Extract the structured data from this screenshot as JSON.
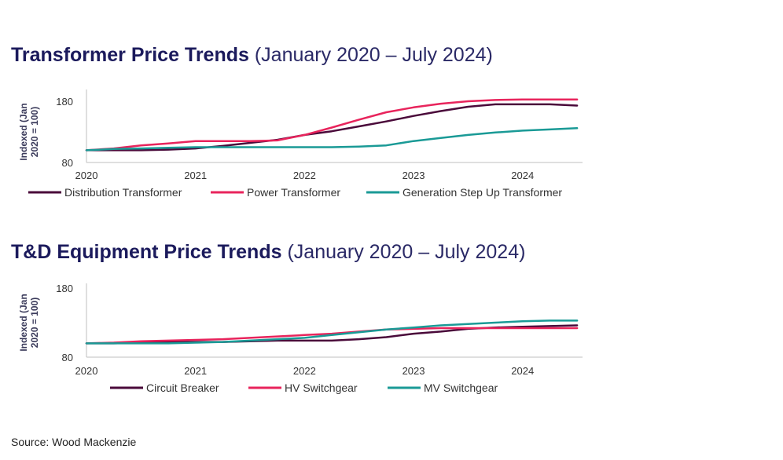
{
  "source_text": "Source: Wood Mackenzie",
  "chart_data": [
    {
      "type": "line",
      "title": "Transformer Price Trends",
      "subtitle": "(January 2020 – July 2024)",
      "ylabel_line1": "Indexed (Jan",
      "ylabel_line2": "2020 = 100)",
      "xlabel": "",
      "xlim": [
        2020,
        2024.55
      ],
      "ylim": [
        80,
        190
      ],
      "x_ticks": [
        "2020",
        "2021",
        "2022",
        "2023",
        "2024"
      ],
      "y_ticks": [
        "80",
        "180"
      ],
      "grid": false,
      "legend_position": "bottom",
      "x": [
        2020,
        2020.25,
        2020.5,
        2020.75,
        2021,
        2021.25,
        2021.5,
        2021.75,
        2022,
        2022.25,
        2022.5,
        2022.75,
        2023,
        2023.25,
        2023.5,
        2023.75,
        2024,
        2024.25,
        2024.5
      ],
      "series": [
        {
          "name": "Distribution Transformer",
          "color": "#4a0a3a",
          "values": [
            100,
            100,
            100,
            101,
            103,
            107,
            112,
            117,
            125,
            131,
            139,
            147,
            156,
            164,
            171,
            175,
            175,
            175,
            173
          ]
        },
        {
          "name": "Power Transformer",
          "color": "#e8245c",
          "values": [
            100,
            103,
            108,
            111,
            115,
            115,
            115,
            116,
            125,
            137,
            150,
            162,
            170,
            176,
            180,
            182,
            183,
            183,
            183
          ]
        },
        {
          "name": "Generation Step Up Transformer",
          "color": "#1a9a96",
          "values": [
            100,
            102,
            103,
            104,
            105,
            105,
            105,
            105,
            105,
            105,
            106,
            108,
            115,
            120,
            125,
            129,
            132,
            134,
            136
          ]
        }
      ]
    },
    {
      "type": "line",
      "title": "T&D Equipment Price Trends",
      "subtitle": "(January 2020 – July 2024)",
      "ylabel_line1": "Indexed (Jan",
      "ylabel_line2": "2020 = 100)",
      "xlabel": "",
      "xlim": [
        2020,
        2024.55
      ],
      "ylim": [
        80,
        180
      ],
      "x_ticks": [
        "2020",
        "2021",
        "2022",
        "2023",
        "2024"
      ],
      "y_ticks": [
        "80",
        "180"
      ],
      "grid": false,
      "legend_position": "bottom",
      "x": [
        2020,
        2020.25,
        2020.5,
        2020.75,
        2021,
        2021.25,
        2021.5,
        2021.75,
        2022,
        2022.25,
        2022.5,
        2022.75,
        2023,
        2023.25,
        2023.5,
        2023.75,
        2024,
        2024.25,
        2024.5
      ],
      "series": [
        {
          "name": "Circuit Breaker",
          "color": "#4a0a3a",
          "values": [
            100,
            100,
            101,
            102,
            102,
            102,
            103,
            104,
            104,
            104,
            106,
            109,
            114,
            117,
            121,
            123,
            124,
            125,
            126
          ]
        },
        {
          "name": "HV Switchgear",
          "color": "#e8245c",
          "values": [
            100,
            101,
            103,
            104,
            105,
            106,
            108,
            110,
            112,
            114,
            117,
            120,
            121,
            122,
            122,
            122,
            122,
            122,
            122
          ]
        },
        {
          "name": "MV Switchgear",
          "color": "#1a9a96",
          "values": [
            100,
            100,
            100,
            100,
            101,
            102,
            104,
            106,
            108,
            112,
            116,
            120,
            123,
            126,
            128,
            130,
            132,
            133,
            133
          ]
        }
      ]
    }
  ]
}
